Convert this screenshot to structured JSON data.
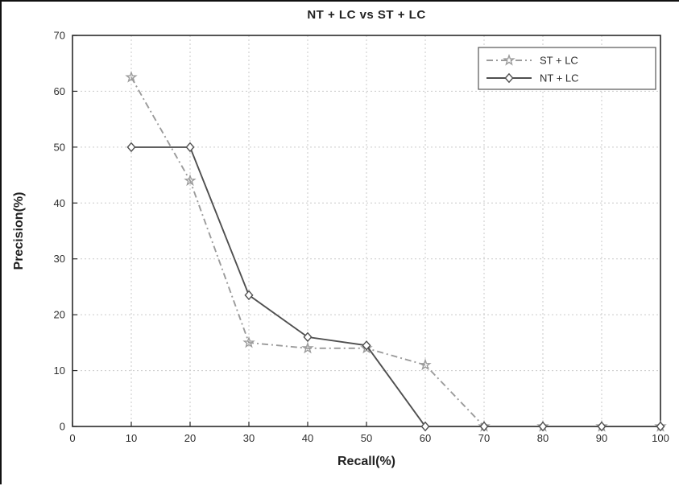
{
  "chart_data": {
    "type": "line",
    "title": "NT + LC vs ST + LC",
    "xlabel": "Recall(%)",
    "ylabel": "Precision(%)",
    "xlim": [
      0,
      100
    ],
    "ylim": [
      0,
      70
    ],
    "xticks": [
      0,
      10,
      20,
      30,
      40,
      50,
      60,
      70,
      80,
      90,
      100
    ],
    "yticks": [
      0,
      10,
      20,
      30,
      40,
      50,
      60,
      70
    ],
    "grid": true,
    "legend_position": "top-right",
    "x": [
      10,
      20,
      30,
      40,
      50,
      60,
      70,
      80,
      90,
      100
    ],
    "series": [
      {
        "name": "ST + LC",
        "marker": "star",
        "line_style": "dash-dot",
        "color": "#9b9b9b",
        "values": [
          62.5,
          44,
          15,
          14,
          14,
          11,
          0,
          0,
          0,
          0
        ]
      },
      {
        "name": "NT + LC",
        "marker": "diamond",
        "line_style": "solid",
        "color": "#4f4f4f",
        "values": [
          50,
          50,
          23.5,
          16,
          14.5,
          0,
          0,
          0,
          0,
          0
        ]
      }
    ],
    "colors": {
      "grid": "#c9c9c9",
      "axis": "#2a2a2a",
      "text": "#2e2e2e",
      "legend_border": "#555555",
      "legend_bg": "#ffffff"
    }
  }
}
